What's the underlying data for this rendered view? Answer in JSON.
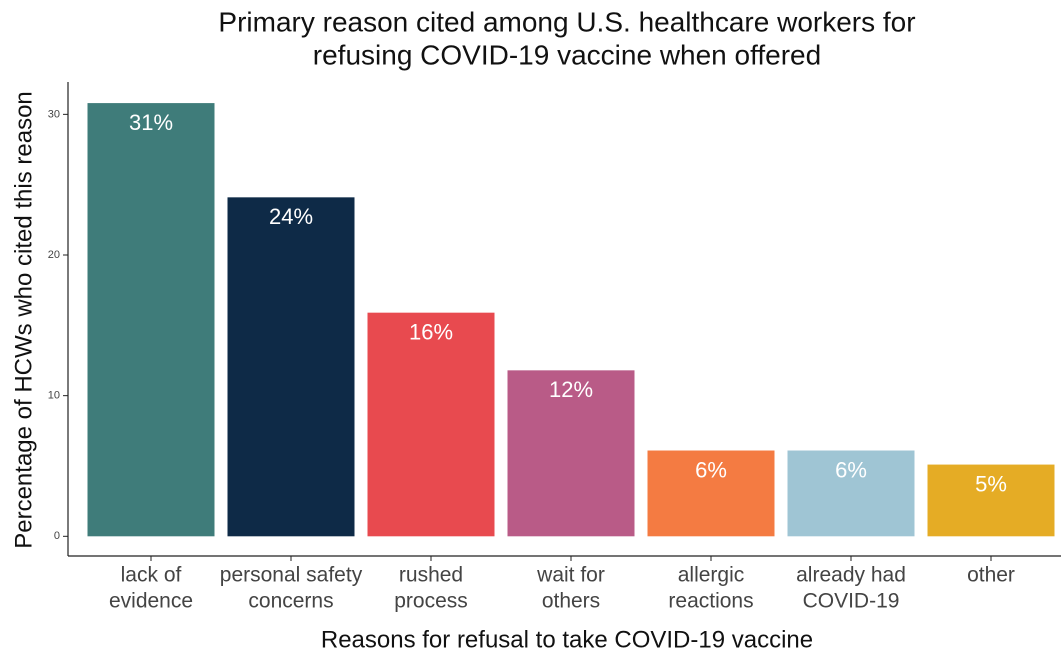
{
  "chart_data": {
    "type": "bar",
    "title": [
      "Primary reason cited among U.S. healthcare workers for",
      "refusing COVID-19 vaccine when offered"
    ],
    "x_label": "Reasons for refusal to take COVID-19 vaccine",
    "y_label": "Percentage of HCWs who cited this reason",
    "categories": [
      [
        "lack of",
        "evidence"
      ],
      [
        "personal safety",
        "concerns"
      ],
      [
        "rushed",
        "process"
      ],
      [
        "wait for",
        "others"
      ],
      [
        "allergic",
        "reactions"
      ],
      [
        "already had",
        "COVID-19"
      ],
      [
        "other"
      ]
    ],
    "values": [
      30.8,
      24.1,
      15.9,
      11.8,
      6.1,
      6.1,
      5.1
    ],
    "value_labels": [
      "31%",
      "24%",
      "16%",
      "12%",
      "6%",
      "6%",
      "5%"
    ],
    "colors": [
      "#3f7c7a",
      "#0e2a47",
      "#e84a4f",
      "#b95b87",
      "#f47b42",
      "#9fc5d4",
      "#e5ac25"
    ],
    "ylim": [
      -1.4,
      32.3
    ],
    "yticks": [
      0,
      10,
      20,
      30
    ],
    "grid": false
  }
}
